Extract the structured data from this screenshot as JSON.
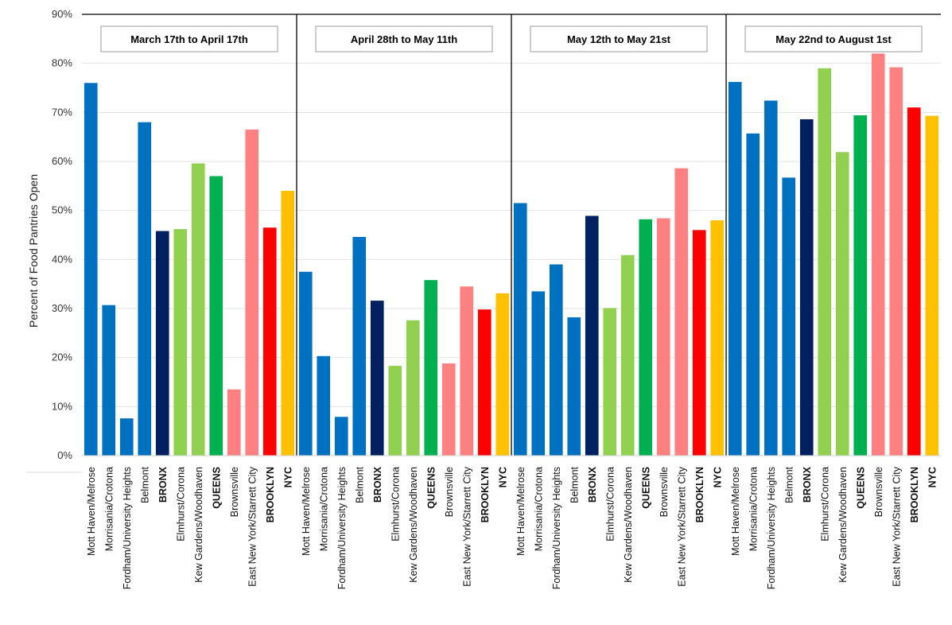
{
  "chart_data": {
    "type": "bar",
    "ylabel": "Percent of Food Pantries Open",
    "ylim": [
      0,
      90
    ],
    "yticks": [
      "0%",
      "10%",
      "20%",
      "30%",
      "40%",
      "50%",
      "60%",
      "70%",
      "80%",
      "90%"
    ],
    "grid": true,
    "categories": [
      {
        "label": "Mott Haven/Melrose",
        "bold": false,
        "color": "#0070C0"
      },
      {
        "label": "Morrisania/Crotona",
        "bold": false,
        "color": "#0070C0"
      },
      {
        "label": "Fordham/University Heights",
        "bold": false,
        "color": "#0070C0"
      },
      {
        "label": "Belmont",
        "bold": false,
        "color": "#0070C0"
      },
      {
        "label": "BRONX",
        "bold": true,
        "color": "#002060"
      },
      {
        "label": "Elmhurst/Corona",
        "bold": false,
        "color": "#92D050"
      },
      {
        "label": "Kew Gardens/Woodhaven",
        "bold": false,
        "color": "#92D050"
      },
      {
        "label": "QUEENS",
        "bold": true,
        "color": "#00B050"
      },
      {
        "label": "Brownsville",
        "bold": false,
        "color": "#FF8080"
      },
      {
        "label": "East New York/Starrett City",
        "bold": false,
        "color": "#FF8080"
      },
      {
        "label": "BROOKLYN",
        "bold": true,
        "color": "#FF0000"
      },
      {
        "label": "NYC",
        "bold": true,
        "color": "#FFC000"
      }
    ],
    "panels": [
      {
        "title": "March 17th to April 17th",
        "values": [
          76,
          30.7,
          7.6,
          68,
          45.8,
          46.2,
          59.6,
          57,
          13.5,
          66.5,
          46.5,
          54
        ]
      },
      {
        "title": "April 28th to May 11th",
        "values": [
          37.5,
          20.3,
          7.9,
          44.6,
          31.6,
          18.3,
          27.6,
          35.8,
          18.8,
          34.5,
          29.8,
          33.1
        ]
      },
      {
        "title": "May 12th to May 21st",
        "values": [
          51.5,
          33.5,
          39,
          28.2,
          48.9,
          30.1,
          40.9,
          48.2,
          48.4,
          58.6,
          46,
          48
        ]
      },
      {
        "title": "May 22nd to August 1st",
        "values": [
          76.2,
          65.7,
          72.4,
          56.7,
          68.6,
          79,
          61.9,
          69.4,
          82,
          79.2,
          71,
          69.3
        ]
      }
    ]
  }
}
